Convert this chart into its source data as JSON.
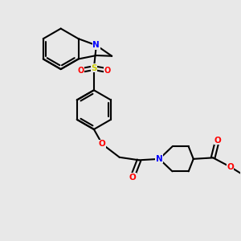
{
  "background_color": "#e8e8e8",
  "atom_colors": {
    "N": "#0000FF",
    "O": "#FF0000",
    "S": "#CCCC00",
    "C": "#000000"
  },
  "line_color": "#000000",
  "line_width": 1.5
}
